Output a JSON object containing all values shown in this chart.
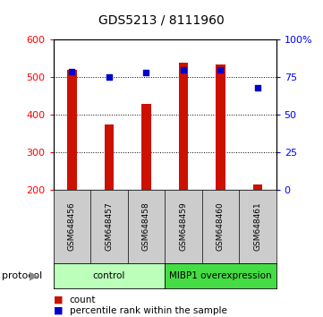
{
  "title": "GDS5213 / 8111960",
  "samples": [
    "GSM648456",
    "GSM648457",
    "GSM648458",
    "GSM648459",
    "GSM648460",
    "GSM648461"
  ],
  "counts": [
    520,
    375,
    430,
    538,
    535,
    215
  ],
  "percentile_ranks": [
    79,
    75,
    78,
    80,
    80,
    68
  ],
  "bar_color": "#cc1100",
  "dot_color": "#0000cc",
  "ylim_left": [
    200,
    600
  ],
  "ylim_right": [
    0,
    100
  ],
  "yticks_left": [
    200,
    300,
    400,
    500,
    600
  ],
  "yticks_right": [
    0,
    25,
    50,
    75,
    100
  ],
  "ytick_labels_right": [
    "0",
    "25",
    "50",
    "75",
    "100%"
  ],
  "grid_values": [
    300,
    400,
    500
  ],
  "protocol_groups": [
    {
      "label": "control",
      "start": 0,
      "end": 3,
      "color": "#bbffbb"
    },
    {
      "label": "MIBP1 overexpression",
      "start": 3,
      "end": 6,
      "color": "#44dd44"
    }
  ],
  "legend_count_label": "count",
  "legend_percentile_label": "percentile rank within the sample",
  "protocol_label": "protocol",
  "background_color": "#ffffff",
  "plot_bg_color": "#ffffff",
  "tick_area_bg": "#cccccc"
}
